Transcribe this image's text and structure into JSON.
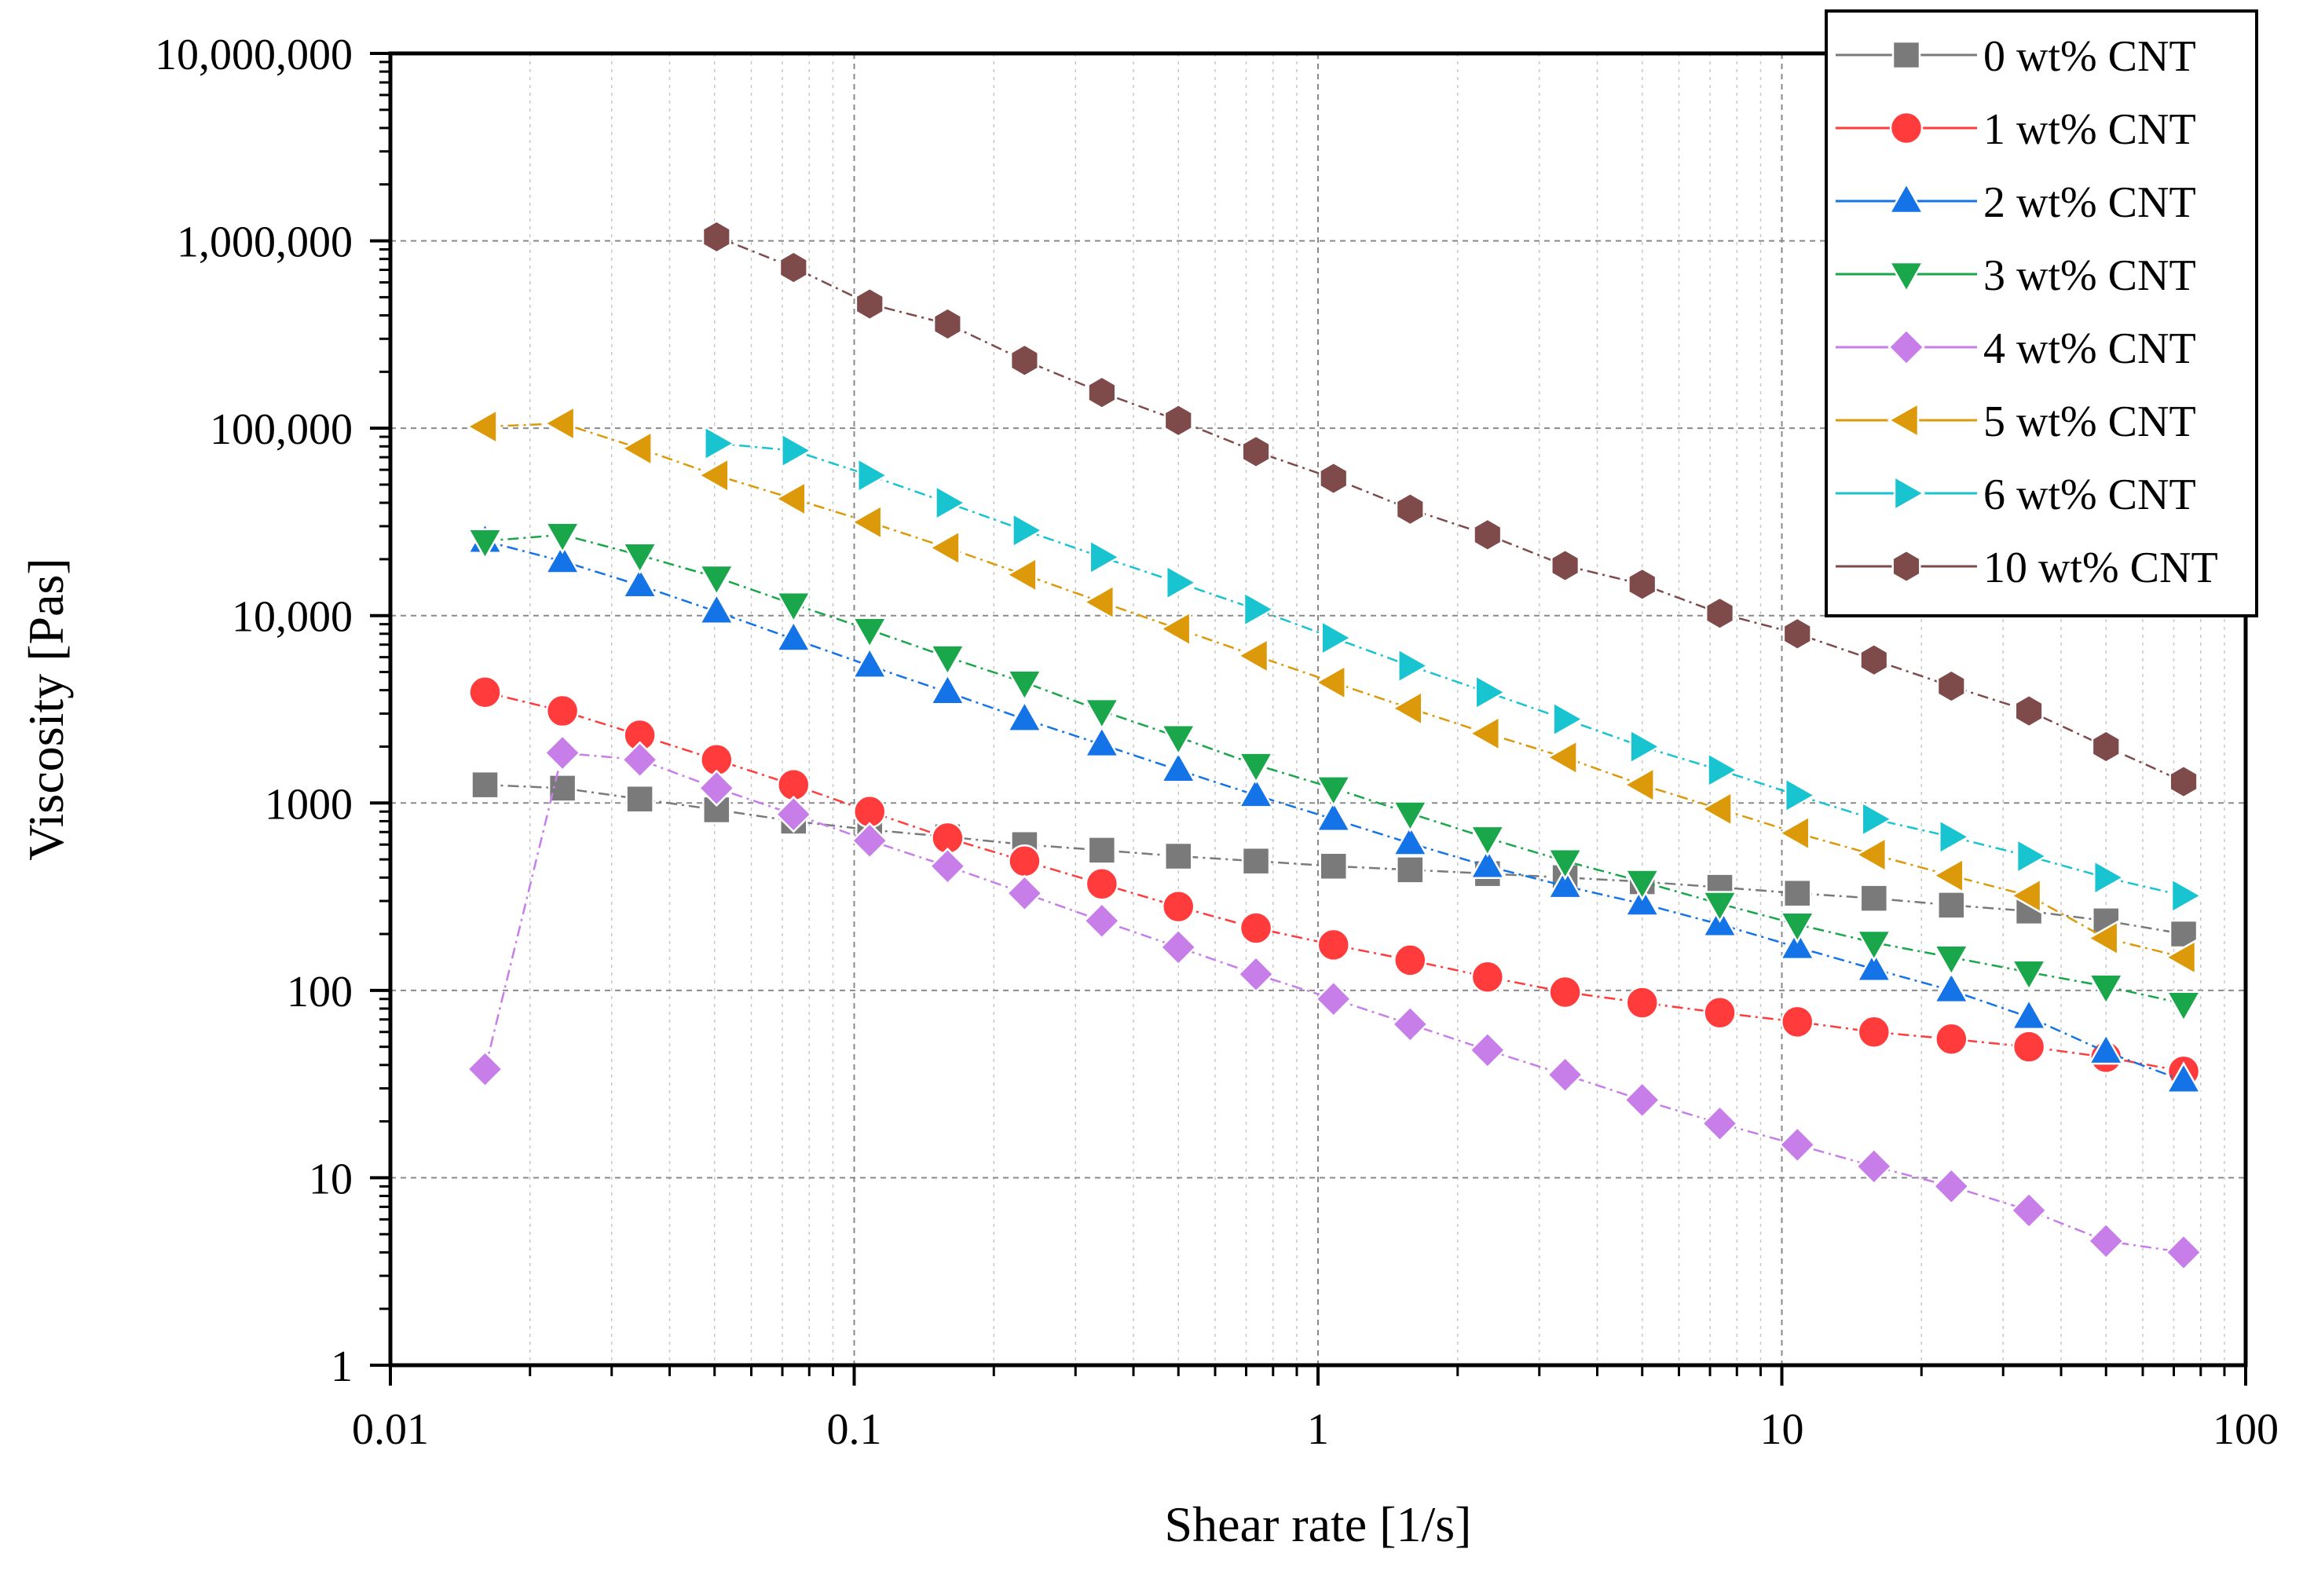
{
  "chart_data": {
    "type": "line",
    "xscale": "log",
    "yscale": "log",
    "xlabel": "Shear rate [1/s]",
    "ylabel": "Viscosity [Pas]",
    "xlim": [
      0.01,
      100
    ],
    "ylim": [
      1,
      10000000
    ],
    "x_ticks": [
      {
        "value": 0.01,
        "label": "0.01"
      },
      {
        "value": 0.1,
        "label": "0.1"
      },
      {
        "value": 1,
        "label": "1"
      },
      {
        "value": 10,
        "label": "10"
      },
      {
        "value": 100,
        "label": "100"
      }
    ],
    "y_ticks": [
      {
        "value": 1,
        "label": "1"
      },
      {
        "value": 10,
        "label": "10"
      },
      {
        "value": 100,
        "label": "100"
      },
      {
        "value": 1000,
        "label": "1000"
      },
      {
        "value": 10000,
        "label": "10,000"
      },
      {
        "value": 100000,
        "label": "100,000"
      },
      {
        "value": 1000000,
        "label": "1,000,000"
      },
      {
        "value": 10000000,
        "label": "10,000,000"
      }
    ],
    "grid": true,
    "legend_position": "top-right",
    "series": [
      {
        "name": "0 wt% CNT",
        "color": "#7a7a7a",
        "marker": "square",
        "x": [
          0.016,
          0.0235,
          0.0345,
          0.0505,
          0.074,
          0.108,
          0.159,
          0.233,
          0.342,
          0.5,
          0.735,
          1.08,
          1.58,
          2.32,
          3.41,
          5.0,
          7.35,
          10.8,
          15.8,
          23.2,
          34.1,
          50.0,
          73.5
        ],
        "y": [
          1250,
          1200,
          1050,
          920,
          800,
          720,
          660,
          600,
          560,
          520,
          490,
          460,
          440,
          420,
          400,
          380,
          355,
          330,
          310,
          285,
          265,
          235,
          200
        ]
      },
      {
        "name": "1 wt% CNT",
        "color": "#ff3b3b",
        "marker": "circle",
        "x": [
          0.016,
          0.0235,
          0.0345,
          0.0505,
          0.074,
          0.108,
          0.159,
          0.233,
          0.342,
          0.5,
          0.735,
          1.08,
          1.58,
          2.32,
          3.41,
          5.0,
          7.35,
          10.8,
          15.8,
          23.2,
          34.1,
          50.0,
          73.5
        ],
        "y": [
          3900,
          3100,
          2300,
          1700,
          1250,
          900,
          650,
          490,
          370,
          280,
          215,
          175,
          145,
          118,
          98,
          86,
          76,
          68,
          60,
          55,
          50,
          44,
          37
        ]
      },
      {
        "name": "2 wt% CNT",
        "color": "#1473e6",
        "marker": "triangle-up",
        "x": [
          0.016,
          0.0235,
          0.0345,
          0.0505,
          0.074,
          0.108,
          0.159,
          0.233,
          0.342,
          0.5,
          0.735,
          1.08,
          1.58,
          2.32,
          3.41,
          5.0,
          7.35,
          10.8,
          15.8,
          23.2,
          34.1,
          50.0,
          73.5
        ],
        "y": [
          25000,
          19500,
          14500,
          10500,
          7500,
          5400,
          3900,
          2800,
          2050,
          1500,
          1100,
          820,
          610,
          460,
          360,
          290,
          225,
          170,
          130,
          100,
          72,
          47,
          33
        ]
      },
      {
        "name": "3 wt% CNT",
        "color": "#1aa64a",
        "marker": "triangle-down",
        "x": [
          0.016,
          0.0235,
          0.0345,
          0.0505,
          0.074,
          0.108,
          0.159,
          0.233,
          0.342,
          0.5,
          0.735,
          1.08,
          1.58,
          2.32,
          3.41,
          5.0,
          7.35,
          10.8,
          15.8,
          23.2,
          34.1,
          50.0,
          73.5
        ],
        "y": [
          25000,
          27000,
          21000,
          16000,
          11500,
          8400,
          6000,
          4400,
          3100,
          2250,
          1600,
          1200,
          880,
          650,
          490,
          380,
          290,
          225,
          180,
          150,
          125,
          105,
          85
        ]
      },
      {
        "name": "4 wt% CNT",
        "color": "#c77ee8",
        "marker": "diamond",
        "x": [
          0.016,
          0.0235,
          0.0345,
          0.0505,
          0.074,
          0.108,
          0.159,
          0.233,
          0.342,
          0.5,
          0.735,
          1.08,
          1.58,
          2.32,
          3.41,
          5.0,
          7.35,
          10.8,
          15.8,
          23.2,
          34.1,
          50.0,
          73.5
        ],
        "y": [
          38,
          1850,
          1700,
          1200,
          870,
          630,
          460,
          330,
          235,
          170,
          122,
          90,
          66,
          48,
          35.5,
          26,
          19.5,
          15,
          11.5,
          9,
          6.7,
          4.6,
          4
        ]
      },
      {
        "name": "5 wt% CNT",
        "color": "#dc9a0a",
        "marker": "triangle-left",
        "x": [
          0.016,
          0.0235,
          0.0345,
          0.0505,
          0.074,
          0.108,
          0.159,
          0.233,
          0.342,
          0.5,
          0.735,
          1.08,
          1.58,
          2.32,
          3.41,
          5.0,
          7.35,
          10.8,
          15.8,
          23.2,
          34.1,
          50.0,
          73.5
        ],
        "y": [
          102000,
          106000,
          78000,
          56000,
          42000,
          31500,
          23000,
          16500,
          11800,
          8500,
          6100,
          4400,
          3200,
          2350,
          1750,
          1250,
          930,
          690,
          530,
          410,
          320,
          190,
          150
        ]
      },
      {
        "name": "6 wt% CNT",
        "color": "#17c4d0",
        "marker": "triangle-right",
        "x": [
          0.0505,
          0.074,
          0.108,
          0.159,
          0.233,
          0.342,
          0.5,
          0.735,
          1.08,
          1.58,
          2.32,
          3.41,
          5.0,
          7.35,
          10.8,
          15.8,
          23.2,
          34.1,
          50.0,
          73.5
        ],
        "y": [
          83000,
          76000,
          56000,
          40000,
          28500,
          20500,
          15000,
          10800,
          7600,
          5400,
          3900,
          2800,
          2000,
          1500,
          1100,
          820,
          660,
          520,
          400,
          320
        ]
      },
      {
        "name": "10 wt% CNT",
        "color": "#7f4a4a",
        "marker": "hexagon",
        "x": [
          0.0505,
          0.074,
          0.108,
          0.159,
          0.233,
          0.342,
          0.5,
          0.735,
          1.08,
          1.58,
          2.32,
          3.41,
          5.0,
          7.35,
          10.8,
          15.8,
          23.2,
          34.1,
          50.0,
          73.5
        ],
        "y": [
          1050000,
          720000,
          460000,
          360000,
          230000,
          155000,
          110000,
          75000,
          54000,
          37000,
          27000,
          18500,
          14700,
          10300,
          8000,
          5800,
          4200,
          3100,
          2000,
          1300
        ]
      }
    ]
  }
}
